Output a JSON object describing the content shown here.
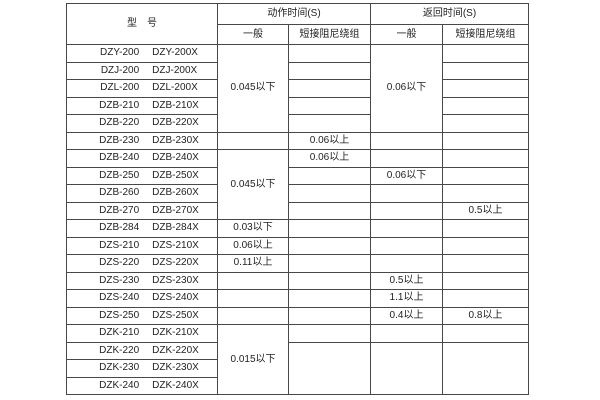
{
  "colors": {
    "background": "#ffffff",
    "border": "#484848",
    "text": "#1f1f1f"
  },
  "table": {
    "header": {
      "model": "型　号",
      "action_time": "动作时间(S)",
      "return_time": "返回时间(S)",
      "action_general": "一般",
      "action_damping": "短接阻尼绕组",
      "return_general": "一般",
      "return_damping": "短接阻尼绕组"
    },
    "models": [
      [
        "DZY-200",
        "DZY-200X"
      ],
      [
        "DZJ-200",
        "DZJ-200X"
      ],
      [
        "DZL-200",
        "DZL-200X"
      ],
      [
        "DZB-210",
        "DZB-210X"
      ],
      [
        "DZB-220",
        "DZB-220X"
      ],
      [
        "DZB-230",
        "DZB-230X"
      ],
      [
        "DZB-240",
        "DZB-240X"
      ],
      [
        "DZB-250",
        "DZB-250X"
      ],
      [
        "DZB-260",
        "DZB-260X"
      ],
      [
        "DZB-270",
        "DZB-270X"
      ],
      [
        "DZB-284",
        "DZB-284X"
      ],
      [
        "DZS-210",
        "DZS-210X"
      ],
      [
        "DZS-220",
        "DZS-220X"
      ],
      [
        "DZS-230",
        "DZS-230X"
      ],
      [
        "DZS-240",
        "DZS-240X"
      ],
      [
        "DZS-250",
        "DZS-250X"
      ],
      [
        "DZK-210",
        "DZK-210X"
      ],
      [
        "DZK-220",
        "DZK-220X"
      ],
      [
        "DZK-230",
        "DZK-230X"
      ],
      [
        "DZK-240",
        "DZK-240X"
      ]
    ],
    "value_columns": [
      {
        "key": "action-general",
        "cells": [
          {
            "row": 1,
            "span": 5,
            "text": "0.045以下"
          },
          {
            "row": 6,
            "span": 1,
            "text": ""
          },
          {
            "row": 7,
            "span": 4,
            "text": "0.045以下"
          },
          {
            "row": 11,
            "span": 1,
            "text": "0.03以下"
          },
          {
            "row": 12,
            "span": 1,
            "text": "0.06以上"
          },
          {
            "row": 13,
            "span": 1,
            "text": "0.11以上"
          },
          {
            "row": 14,
            "span": 1,
            "text": ""
          },
          {
            "row": 15,
            "span": 1,
            "text": ""
          },
          {
            "row": 16,
            "span": 1,
            "text": ""
          },
          {
            "row": 17,
            "span": 4,
            "text": "0.015以下"
          }
        ]
      },
      {
        "key": "action-damping",
        "cells": [
          {
            "row": 1,
            "span": 1,
            "text": ""
          },
          {
            "row": 2,
            "span": 1,
            "text": ""
          },
          {
            "row": 3,
            "span": 1,
            "text": ""
          },
          {
            "row": 4,
            "span": 1,
            "text": ""
          },
          {
            "row": 5,
            "span": 1,
            "text": ""
          },
          {
            "row": 6,
            "span": 1,
            "text": "0.06以上"
          },
          {
            "row": 7,
            "span": 1,
            "text": "0.06以上"
          },
          {
            "row": 8,
            "span": 1,
            "text": ""
          },
          {
            "row": 9,
            "span": 1,
            "text": ""
          },
          {
            "row": 10,
            "span": 1,
            "text": ""
          },
          {
            "row": 11,
            "span": 1,
            "text": ""
          },
          {
            "row": 12,
            "span": 1,
            "text": ""
          },
          {
            "row": 13,
            "span": 1,
            "text": ""
          },
          {
            "row": 14,
            "span": 1,
            "text": ""
          },
          {
            "row": 15,
            "span": 1,
            "text": ""
          },
          {
            "row": 16,
            "span": 1,
            "text": ""
          },
          {
            "row": 17,
            "span": 1,
            "text": ""
          },
          {
            "row": 18,
            "span": 3,
            "text": ""
          }
        ]
      },
      {
        "key": "return-general",
        "cells": [
          {
            "row": 1,
            "span": 5,
            "text": "0.06以下"
          },
          {
            "row": 6,
            "span": 1,
            "text": ""
          },
          {
            "row": 7,
            "span": 1,
            "text": ""
          },
          {
            "row": 8,
            "span": 1,
            "text": "0.06以下"
          },
          {
            "row": 9,
            "span": 1,
            "text": ""
          },
          {
            "row": 10,
            "span": 1,
            "text": ""
          },
          {
            "row": 11,
            "span": 1,
            "text": ""
          },
          {
            "row": 12,
            "span": 1,
            "text": ""
          },
          {
            "row": 13,
            "span": 1,
            "text": ""
          },
          {
            "row": 14,
            "span": 1,
            "text": "0.5以上"
          },
          {
            "row": 15,
            "span": 1,
            "text": "1.1以上"
          },
          {
            "row": 16,
            "span": 1,
            "text": "0.4以上"
          },
          {
            "row": 17,
            "span": 1,
            "text": ""
          },
          {
            "row": 18,
            "span": 3,
            "text": ""
          }
        ]
      },
      {
        "key": "return-damping",
        "cells": [
          {
            "row": 1,
            "span": 1,
            "text": ""
          },
          {
            "row": 2,
            "span": 1,
            "text": ""
          },
          {
            "row": 3,
            "span": 1,
            "text": ""
          },
          {
            "row": 4,
            "span": 1,
            "text": ""
          },
          {
            "row": 5,
            "span": 1,
            "text": ""
          },
          {
            "row": 6,
            "span": 1,
            "text": ""
          },
          {
            "row": 7,
            "span": 1,
            "text": ""
          },
          {
            "row": 8,
            "span": 1,
            "text": ""
          },
          {
            "row": 9,
            "span": 1,
            "text": ""
          },
          {
            "row": 10,
            "span": 1,
            "text": "0.5以上"
          },
          {
            "row": 11,
            "span": 1,
            "text": ""
          },
          {
            "row": 12,
            "span": 1,
            "text": ""
          },
          {
            "row": 13,
            "span": 1,
            "text": ""
          },
          {
            "row": 14,
            "span": 1,
            "text": ""
          },
          {
            "row": 15,
            "span": 1,
            "text": ""
          },
          {
            "row": 16,
            "span": 1,
            "text": "0.8以上"
          },
          {
            "row": 17,
            "span": 1,
            "text": ""
          },
          {
            "row": 18,
            "span": 3,
            "text": ""
          }
        ]
      }
    ]
  }
}
